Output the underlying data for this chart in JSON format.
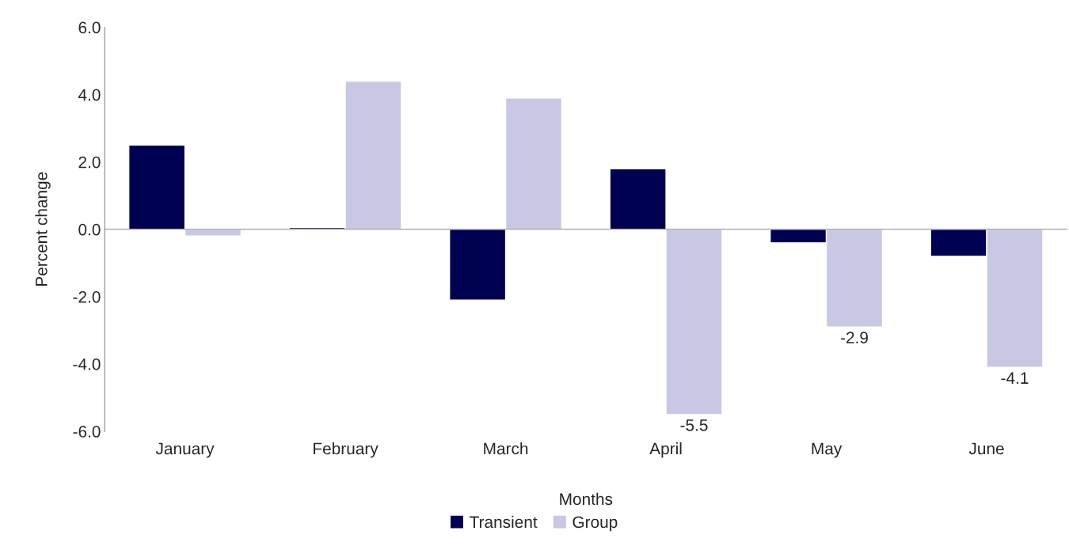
{
  "chart_data": {
    "type": "bar",
    "xlabel": "Months",
    "ylabel": "Percent change",
    "categories": [
      "January",
      "February",
      "March",
      "April",
      "May",
      "June"
    ],
    "series": [
      {
        "name": "Transient",
        "color": "#000050",
        "values": [
          2.5,
          0.05,
          -2.1,
          1.8,
          -0.4,
          -0.8
        ]
      },
      {
        "name": "Group",
        "color": "#c8c8e4",
        "values": [
          -0.2,
          4.4,
          3.9,
          -5.5,
          -2.9,
          -4.1
        ],
        "value_labels": [
          null,
          null,
          null,
          "-5.5",
          "-2.9",
          "-4.1"
        ]
      }
    ],
    "ylim": [
      -6,
      6
    ],
    "yticks": [
      {
        "value": -6,
        "label": "-6.0"
      },
      {
        "value": -4,
        "label": "-4.0"
      },
      {
        "value": -2,
        "label": "-2.0"
      },
      {
        "value": 0,
        "label": "0.0"
      },
      {
        "value": 2,
        "label": "2.0"
      },
      {
        "value": 4,
        "label": "4.0"
      },
      {
        "value": 6,
        "label": "6.0"
      }
    ],
    "legend": "bottom"
  }
}
